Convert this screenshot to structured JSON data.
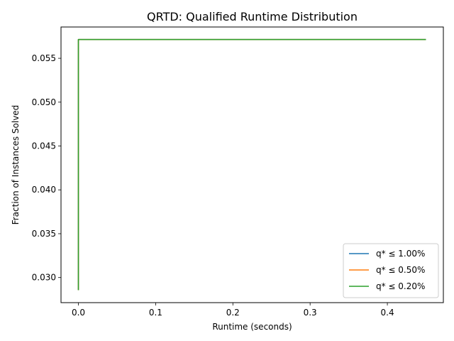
{
  "chart_data": {
    "type": "line",
    "title": "QRTD: Qualified Runtime Distribution",
    "xlabel": "Runtime (seconds)",
    "ylabel": "Fraction of Instances Solved",
    "xlim": [
      -0.0225,
      0.4725
    ],
    "ylim": [
      0.02714,
      0.05857
    ],
    "x_ticks": [
      0.0,
      0.1,
      0.2,
      0.3,
      0.4
    ],
    "x_tick_labels": [
      "0.0",
      "0.1",
      "0.2",
      "0.3",
      "0.4"
    ],
    "y_ticks": [
      0.03,
      0.035,
      0.04,
      0.045,
      0.05,
      0.055
    ],
    "y_tick_labels": [
      "0.030",
      "0.035",
      "0.040",
      "0.045",
      "0.050",
      "0.055"
    ],
    "grid": false,
    "legend_position": "lower right",
    "series": [
      {
        "name": "q* ≤ 1.00%",
        "color": "#1f77b4",
        "x": [
          0.0,
          0.0,
          0.45
        ],
        "y": [
          0.02857,
          0.05714,
          0.05714
        ]
      },
      {
        "name": "q* ≤ 0.50%",
        "color": "#ff7f0e",
        "x": [
          0.0,
          0.0,
          0.45
        ],
        "y": [
          0.02857,
          0.05714,
          0.05714
        ]
      },
      {
        "name": "q* ≤ 0.20%",
        "color": "#2ca02c",
        "x": [
          0.0,
          0.0,
          0.45
        ],
        "y": [
          0.02857,
          0.05714,
          0.05714
        ]
      }
    ]
  }
}
